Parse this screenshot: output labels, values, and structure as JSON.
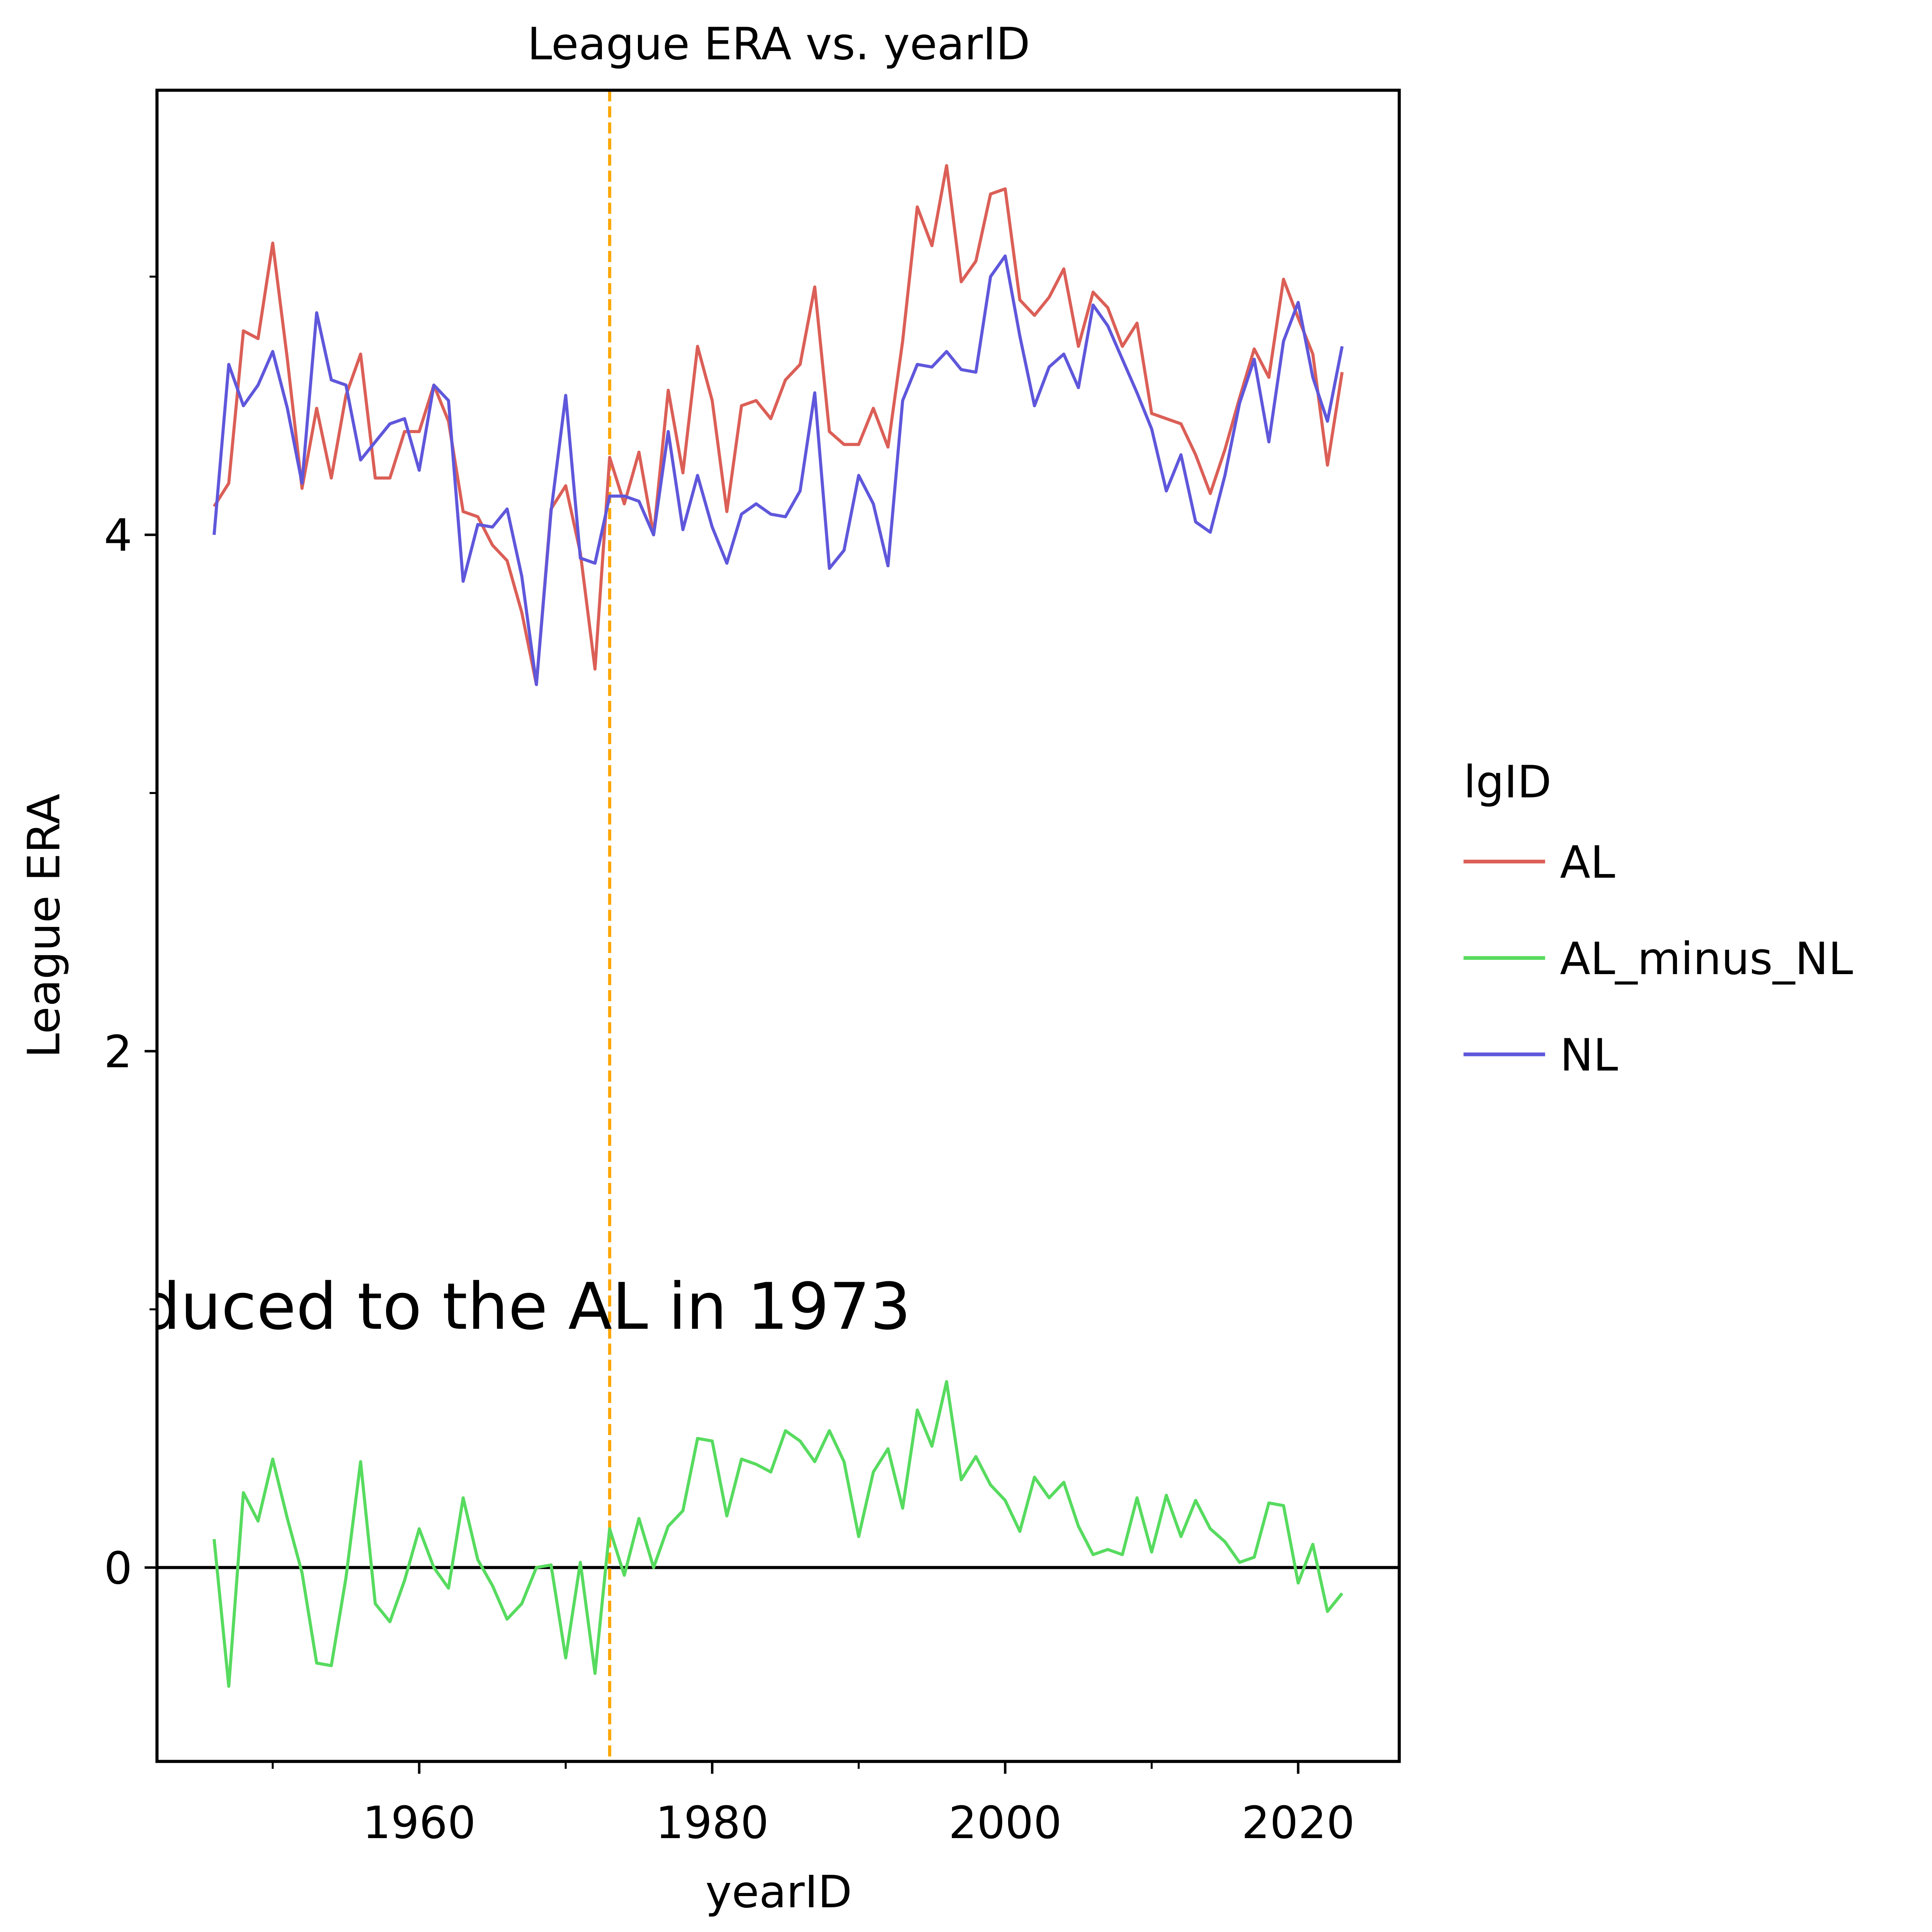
{
  "chart_data": {
    "type": "line",
    "title": "League ERA vs. yearID",
    "x_label": "yearID",
    "y_label": "League ERA",
    "legend_title": "lgID",
    "legend": "outside right",
    "annotation": "duced to the AL in 1973",
    "x": [
      1946,
      1947,
      1948,
      1949,
      1950,
      1951,
      1952,
      1953,
      1954,
      1955,
      1956,
      1957,
      1958,
      1959,
      1960,
      1961,
      1962,
      1963,
      1964,
      1965,
      1966,
      1967,
      1968,
      1969,
      1970,
      1971,
      1972,
      1973,
      1974,
      1975,
      1976,
      1977,
      1978,
      1979,
      1980,
      1981,
      1982,
      1983,
      1984,
      1985,
      1986,
      1987,
      1988,
      1989,
      1990,
      1991,
      1992,
      1993,
      1994,
      1995,
      1996,
      1997,
      1998,
      1999,
      2000,
      2001,
      2002,
      2003,
      2004,
      2005,
      2006,
      2007,
      2008,
      2009,
      2010,
      2011,
      2012,
      2013,
      2014,
      2015,
      2016,
      2017,
      2018,
      2019,
      2020,
      2021,
      2022,
      2023
    ],
    "series": [
      {
        "name": "AL",
        "color": "#db5f57",
        "values": [
          4.11,
          4.2,
          4.79,
          4.76,
          5.13,
          4.68,
          4.18,
          4.49,
          4.22,
          4.54,
          4.7,
          4.22,
          4.22,
          4.4,
          4.4,
          4.58,
          4.44,
          4.09,
          4.07,
          3.96,
          3.9,
          3.7,
          3.42,
          4.1,
          4.19,
          3.93,
          3.48,
          4.3,
          4.12,
          4.32,
          4.0,
          4.56,
          4.24,
          4.73,
          4.52,
          4.09,
          4.5,
          4.52,
          4.45,
          4.6,
          4.66,
          4.96,
          4.4,
          4.35,
          4.35,
          4.49,
          4.34,
          4.75,
          5.27,
          5.12,
          5.43,
          4.98,
          5.06,
          5.32,
          5.34,
          4.91,
          4.85,
          4.92,
          5.03,
          4.73,
          4.94,
          4.88,
          4.73,
          4.82,
          4.47,
          4.45,
          4.43,
          4.31,
          4.16,
          4.33,
          4.53,
          4.72,
          4.61,
          4.99,
          4.84,
          4.7,
          4.27,
          4.63
        ]
      },
      {
        "name": "AL_minus_NL",
        "color": "#57db5f",
        "values": [
          0.11,
          -0.46,
          0.29,
          0.18,
          0.42,
          0.19,
          -0.02,
          -0.37,
          -0.38,
          -0.04,
          0.41,
          -0.14,
          -0.21,
          -0.05,
          0.15,
          0.0,
          -0.08,
          0.27,
          0.03,
          -0.07,
          -0.2,
          -0.14,
          0.0,
          0.01,
          -0.35,
          0.02,
          -0.41,
          0.15,
          -0.03,
          0.19,
          0.0,
          0.16,
          0.22,
          0.5,
          0.49,
          0.2,
          0.42,
          0.4,
          0.37,
          0.53,
          0.49,
          0.41,
          0.53,
          0.41,
          0.12,
          0.37,
          0.46,
          0.23,
          0.61,
          0.47,
          0.72,
          0.34,
          0.43,
          0.32,
          0.26,
          0.14,
          0.35,
          0.27,
          0.33,
          0.16,
          0.05,
          0.07,
          0.05,
          0.27,
          0.06,
          0.28,
          0.12,
          0.26,
          0.15,
          0.1,
          0.02,
          0.04,
          0.25,
          0.24,
          -0.06,
          0.09,
          -0.17,
          -0.1
        ]
      },
      {
        "name": "NL",
        "color": "#5f57db",
        "values": [
          4.0,
          4.66,
          4.5,
          4.58,
          4.71,
          4.49,
          4.2,
          4.86,
          4.6,
          4.58,
          4.29,
          4.36,
          4.43,
          4.45,
          4.25,
          4.58,
          4.52,
          3.82,
          4.04,
          4.03,
          4.1,
          3.84,
          3.42,
          4.09,
          4.54,
          3.91,
          3.89,
          4.15,
          4.15,
          4.13,
          4.0,
          4.4,
          4.02,
          4.23,
          4.03,
          3.89,
          4.08,
          4.12,
          4.08,
          4.07,
          4.17,
          4.55,
          3.87,
          3.94,
          4.23,
          4.12,
          3.88,
          4.52,
          4.66,
          4.65,
          4.71,
          4.64,
          4.63,
          5.0,
          5.08,
          4.77,
          4.5,
          4.65,
          4.7,
          4.57,
          4.89,
          4.81,
          4.68,
          4.55,
          4.41,
          4.17,
          4.31,
          4.05,
          4.01,
          4.23,
          4.51,
          4.68,
          4.36,
          4.75,
          4.9,
          4.61,
          4.44,
          4.73
        ]
      }
    ],
    "xlim": [
      1942.1,
      2026.9
    ],
    "ylim": [
      -0.751,
      5.722
    ],
    "xticks": [
      1960,
      1980,
      2000,
      2020
    ],
    "xminorticks": [
      1950,
      1970,
      1990,
      2010
    ],
    "yticks": [
      0,
      2,
      4
    ],
    "yminorticks": [
      1,
      3,
      5
    ],
    "hlines": [
      {
        "y": 0,
        "color": "#000000"
      }
    ],
    "vlines": [
      {
        "x": 1973,
        "color": "#ffa500",
        "dashed": true
      }
    ],
    "grid": false
  }
}
